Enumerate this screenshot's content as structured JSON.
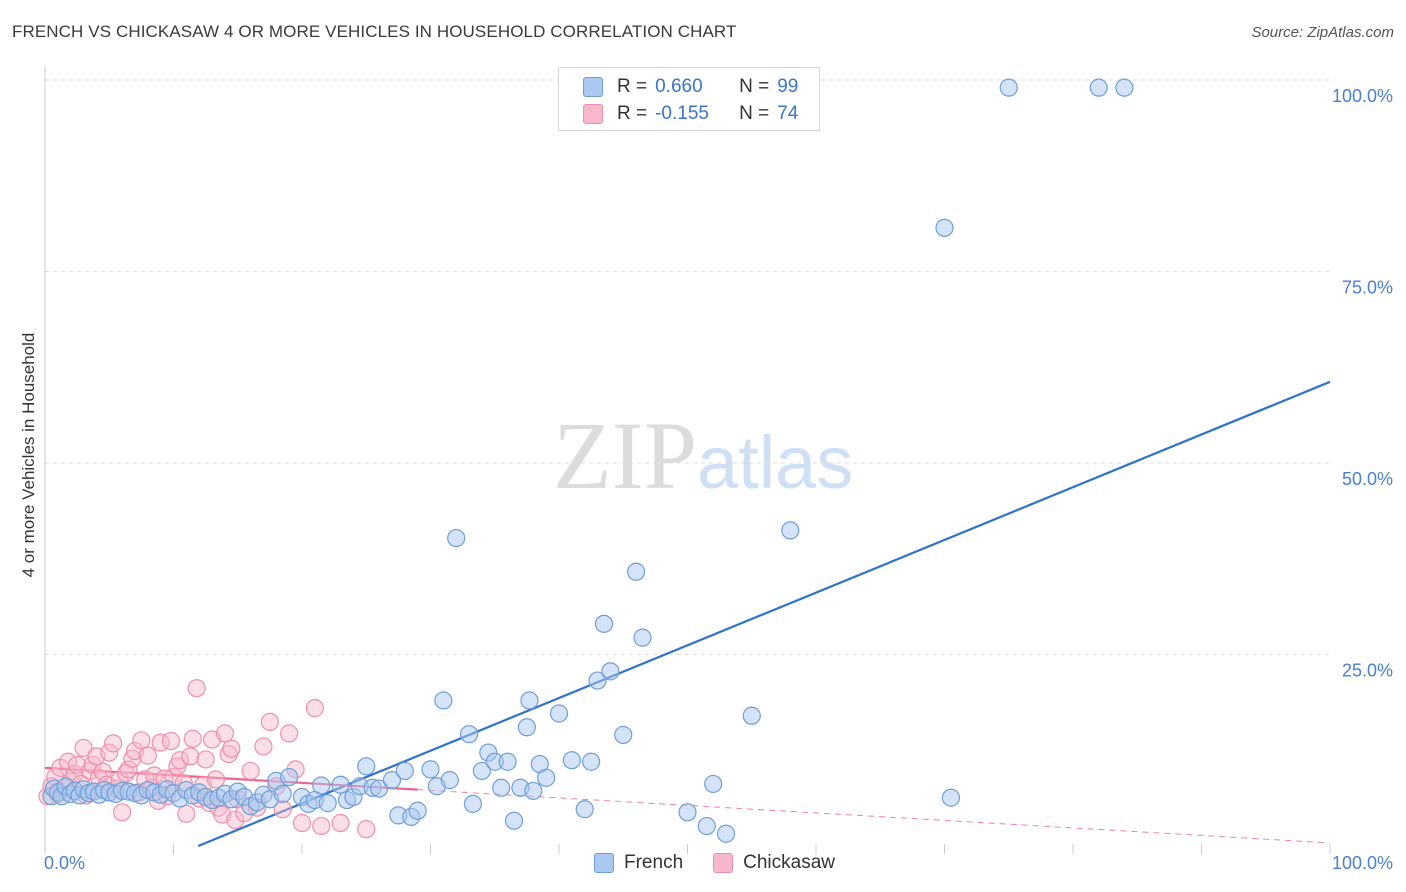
{
  "title": "FRENCH VS CHICKASAW 4 OR MORE VEHICLES IN HOUSEHOLD CORRELATION CHART",
  "source": "Source: ZipAtlas.com",
  "watermark": {
    "zip": "ZIP",
    "atlas": "atlas"
  },
  "legend": {
    "french": {
      "r_label": "R =",
      "r_value": "0.660",
      "n_label": "N =",
      "n_value": "99"
    },
    "chickasaw": {
      "r_label": "R =",
      "r_value": "-0.155",
      "n_label": "N =",
      "n_value": "74"
    }
  },
  "colors": {
    "french_fill": "#aac8f0",
    "french_stroke": "#6f9fd8",
    "french_line": "#2f72cc",
    "chickasaw_fill": "#f6b8ca",
    "chickasaw_stroke": "#ef8fac",
    "chickasaw_line": "#e9658f",
    "grid": "#dddddd",
    "tick_text": "#4a7fcf"
  },
  "chart_data": {
    "type": "scatter",
    "title": "FRENCH VS CHICKASAW 4 OR MORE VEHICLES IN HOUSEHOLD CORRELATION CHART",
    "xlabel": "",
    "ylabel": "4 or more Vehicles in Household",
    "xlim": [
      0,
      100
    ],
    "ylim": [
      0,
      100
    ],
    "x_tick_labels": [
      "0.0%",
      "100.0%"
    ],
    "y_ticks": [
      25,
      50,
      75,
      100
    ],
    "y_tick_labels": [
      "25.0%",
      "50.0%",
      "75.0%",
      "100.0%"
    ],
    "legend_position": "top-center",
    "series": [
      {
        "name": "French",
        "points": [
          [
            0.5,
            6.5
          ],
          [
            0.7,
            7.5
          ],
          [
            1,
            7
          ],
          [
            1.3,
            6.5
          ],
          [
            1.6,
            7.8
          ],
          [
            2,
            6.8
          ],
          [
            2.3,
            7.2
          ],
          [
            2.7,
            6.6
          ],
          [
            3,
            7.4
          ],
          [
            3.4,
            6.9
          ],
          [
            3.8,
            7.1
          ],
          [
            4.2,
            6.7
          ],
          [
            4.6,
            7.3
          ],
          [
            5,
            7
          ],
          [
            5.5,
            6.8
          ],
          [
            6,
            7.2
          ],
          [
            6.5,
            7.1
          ],
          [
            7,
            6.9
          ],
          [
            7.5,
            6.6
          ],
          [
            8,
            7.3
          ],
          [
            8.5,
            7
          ],
          [
            9,
            6.7
          ],
          [
            9.5,
            7.4
          ],
          [
            10,
            6.9
          ],
          [
            10.5,
            6.2
          ],
          [
            11,
            7.3
          ],
          [
            11.5,
            6.6
          ],
          [
            12,
            7
          ],
          [
            12.5,
            6.4
          ],
          [
            13,
            6
          ],
          [
            13.5,
            6.3
          ],
          [
            14,
            6.8
          ],
          [
            14.5,
            6.1
          ],
          [
            15,
            7.1
          ],
          [
            15.5,
            6.4
          ],
          [
            16,
            5.2
          ],
          [
            16.5,
            5.7
          ],
          [
            17,
            6.7
          ],
          [
            17.5,
            6.1
          ],
          [
            18,
            8.5
          ],
          [
            18.5,
            6.8
          ],
          [
            19,
            9
          ],
          [
            20,
            6.4
          ],
          [
            20.5,
            5.5
          ],
          [
            21,
            6
          ],
          [
            21.5,
            7.9
          ],
          [
            22,
            5.6
          ],
          [
            23,
            8
          ],
          [
            23.5,
            6
          ],
          [
            24,
            6.4
          ],
          [
            24.5,
            7.8
          ],
          [
            25,
            10.4
          ],
          [
            25.5,
            7.6
          ],
          [
            26,
            7.5
          ],
          [
            27,
            8.6
          ],
          [
            27.5,
            4
          ],
          [
            28,
            9.8
          ],
          [
            28.5,
            3.8
          ],
          [
            29,
            4.6
          ],
          [
            30,
            10
          ],
          [
            30.5,
            7.8
          ],
          [
            31,
            19
          ],
          [
            31.5,
            8.6
          ],
          [
            32,
            40.2
          ],
          [
            33,
            14.6
          ],
          [
            33.3,
            5.5
          ],
          [
            34,
            9.8
          ],
          [
            34.5,
            12.2
          ],
          [
            35,
            11
          ],
          [
            35.5,
            7.6
          ],
          [
            36,
            11
          ],
          [
            36.5,
            3.3
          ],
          [
            37,
            7.6
          ],
          [
            37.5,
            15.5
          ],
          [
            37.7,
            19
          ],
          [
            38,
            7.2
          ],
          [
            38.5,
            10.7
          ],
          [
            39,
            8.9
          ],
          [
            40,
            17.3
          ],
          [
            41,
            11.2
          ],
          [
            42,
            4.8
          ],
          [
            42.5,
            11
          ],
          [
            43,
            21.6
          ],
          [
            43.5,
            29
          ],
          [
            44,
            22.8
          ],
          [
            45,
            14.5
          ],
          [
            46,
            35.8
          ],
          [
            46.5,
            27.2
          ],
          [
            50,
            4.4
          ],
          [
            51.5,
            2.6
          ],
          [
            52,
            8.1
          ],
          [
            53,
            1.6
          ],
          [
            55,
            17
          ],
          [
            58,
            41.2
          ],
          [
            70,
            80.7
          ],
          [
            70.5,
            6.3
          ],
          [
            75,
            99
          ],
          [
            82,
            99
          ],
          [
            84,
            99
          ]
        ]
      },
      {
        "name": "Chickasaw",
        "points": [
          [
            0.2,
            6.5
          ],
          [
            0.5,
            7.8
          ],
          [
            0.8,
            9
          ],
          [
            1,
            6.8
          ],
          [
            1.2,
            10.2
          ],
          [
            1.5,
            7.6
          ],
          [
            1.8,
            11
          ],
          [
            2,
            8.4
          ],
          [
            2.3,
            9.4
          ],
          [
            2.5,
            10.6
          ],
          [
            2.8,
            8.1
          ],
          [
            3,
            12.8
          ],
          [
            3.2,
            6.6
          ],
          [
            3.5,
            9.8
          ],
          [
            3.7,
            10.6
          ],
          [
            4,
            11.7
          ],
          [
            4.2,
            8.9
          ],
          [
            4.5,
            9.7
          ],
          [
            4.8,
            8
          ],
          [
            5,
            12.2
          ],
          [
            5.3,
            13.4
          ],
          [
            5.5,
            7.5
          ],
          [
            5.8,
            8.6
          ],
          [
            6,
            4.4
          ],
          [
            6.3,
            9.5
          ],
          [
            6.5,
            10
          ],
          [
            6.8,
            11.4
          ],
          [
            7,
            12.4
          ],
          [
            7.3,
            7
          ],
          [
            7.5,
            13.8
          ],
          [
            7.8,
            8.7
          ],
          [
            8,
            11.8
          ],
          [
            8.3,
            7.6
          ],
          [
            8.5,
            9.2
          ],
          [
            8.8,
            5.9
          ],
          [
            9,
            13.5
          ],
          [
            9.3,
            8.8
          ],
          [
            9.5,
            6.5
          ],
          [
            9.8,
            13.7
          ],
          [
            10,
            9
          ],
          [
            10.3,
            10.4
          ],
          [
            10.5,
            11.2
          ],
          [
            10.8,
            8.2
          ],
          [
            11,
            4.2
          ],
          [
            11.3,
            11.7
          ],
          [
            11.5,
            14
          ],
          [
            11.8,
            20.6
          ],
          [
            12,
            6.2
          ],
          [
            12.3,
            7.9
          ],
          [
            12.5,
            11.3
          ],
          [
            12.8,
            5.6
          ],
          [
            13,
            13.9
          ],
          [
            13.3,
            8.7
          ],
          [
            13.5,
            5
          ],
          [
            13.8,
            4.1
          ],
          [
            14,
            14.7
          ],
          [
            14.3,
            12
          ],
          [
            14.5,
            12.7
          ],
          [
            14.8,
            3.4
          ],
          [
            15,
            6.1
          ],
          [
            15.5,
            4.3
          ],
          [
            16,
            9.8
          ],
          [
            16.5,
            5
          ],
          [
            17,
            13
          ],
          [
            17.5,
            16.2
          ],
          [
            18,
            7.8
          ],
          [
            18.5,
            4.8
          ],
          [
            19,
            14.7
          ],
          [
            19.5,
            10
          ],
          [
            20,
            3
          ],
          [
            21,
            18
          ],
          [
            21.5,
            2.6
          ],
          [
            23,
            3
          ],
          [
            25,
            2.2
          ]
        ]
      }
    ],
    "trendlines": [
      {
        "series": "French",
        "x": [
          0,
          100
        ],
        "y": [
          -8.2,
          60.6
        ]
      },
      {
        "series": "Chickasaw",
        "x": [
          0,
          100
        ],
        "y": [
          10.2,
          0.4
        ],
        "solid_until_x": 29
      }
    ]
  }
}
